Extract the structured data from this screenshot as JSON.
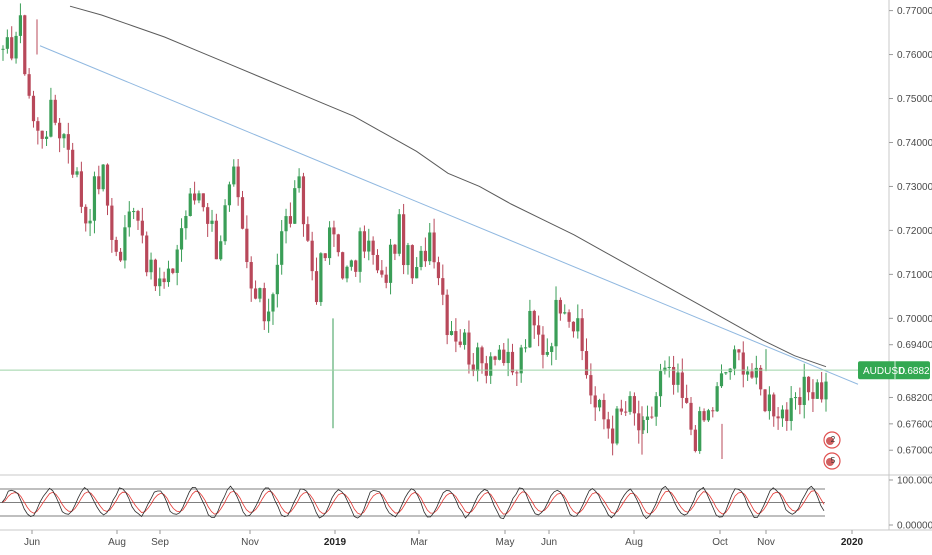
{
  "symbol": "AUDUSD",
  "last_price_label": "0.68821",
  "colors": {
    "up": "#26a69a",
    "down": "#ef5350",
    "up_body": "#3a9e57",
    "down_body": "#b8485a",
    "ma": "#5a5a5a",
    "trendline": "#90b8e0",
    "price_line": "#9ed3a6",
    "tag_bg": "#33a852",
    "osc_k": "#2b2b2b",
    "osc_d": "#e53935"
  },
  "icons": {
    "event_badge_1": "event-flag-icon",
    "event_badge_2": "event-flag-icon"
  },
  "event_badges": [
    "2",
    "5"
  ],
  "chart_data": {
    "type": "candlestick",
    "price_axis": {
      "ticks": [
        "0.77000",
        "0.76000",
        "0.75000",
        "0.74000",
        "0.73000",
        "0.72000",
        "0.71000",
        "0.70000",
        "0.69400",
        "0.68200",
        "0.67600",
        "0.67000"
      ],
      "tick_values": [
        0.77,
        0.76,
        0.75,
        0.74,
        0.73,
        0.72,
        0.71,
        0.7,
        0.694,
        0.682,
        0.676,
        0.67
      ],
      "ylim": [
        0.6655,
        0.7715
      ]
    },
    "time_axis": {
      "labels": [
        "Jun",
        "Aug",
        "Sep",
        "Nov",
        "2019",
        "Mar",
        "May",
        "Jun",
        "Aug",
        "Oct",
        "Nov",
        "2020"
      ],
      "bold": [
        "2019",
        "2020"
      ]
    },
    "price_path": [
      [
        0.756,
        0.76
      ],
      [
        0.766,
        0.768
      ],
      [
        0.739,
        0.743
      ],
      [
        0.745,
        0.748
      ],
      [
        0.738,
        0.742
      ],
      [
        0.72,
        0.726
      ],
      [
        0.732,
        0.736
      ],
      [
        0.71,
        0.714
      ],
      [
        0.73,
        0.728
      ],
      [
        0.708,
        0.71
      ],
      [
        0.708,
        0.706
      ],
      [
        0.722,
        0.725
      ],
      [
        0.729,
        0.731
      ],
      [
        0.715,
        0.718
      ],
      [
        0.729,
        0.734
      ],
      [
        0.705,
        0.708
      ],
      [
        0.7,
        0.701
      ],
      [
        0.718,
        0.722
      ],
      [
        0.727,
        0.73
      ],
      [
        0.706,
        0.708
      ],
      [
        0.718,
        0.722
      ],
      [
        0.71,
        0.707
      ],
      [
        0.718,
        0.72
      ],
      [
        0.706,
        0.708
      ],
      [
        0.72,
        0.721
      ],
      [
        0.708,
        0.707
      ],
      [
        0.72,
        0.722
      ],
      [
        0.699,
        0.701
      ],
      [
        0.696,
        0.694
      ],
      [
        0.688,
        0.689
      ],
      [
        0.694,
        0.696
      ],
      [
        0.686,
        0.685
      ],
      [
        0.698,
        0.699
      ],
      [
        0.692,
        0.694
      ],
      [
        0.706,
        0.708
      ],
      [
        0.696,
        0.694
      ],
      [
        0.68,
        0.679
      ],
      [
        0.676,
        0.674
      ],
      [
        0.679,
        0.681
      ],
      [
        0.672,
        0.673
      ],
      [
        0.687,
        0.688
      ],
      [
        0.683,
        0.685
      ],
      [
        0.674,
        0.673
      ],
      [
        0.678,
        0.68
      ],
      [
        0.688,
        0.69
      ],
      [
        0.691,
        0.692
      ],
      [
        0.682,
        0.684
      ],
      [
        0.68,
        0.681
      ],
      [
        0.678,
        0.677
      ],
      [
        0.684,
        0.686
      ],
      [
        0.681,
        0.687
      ]
    ],
    "highs_lows": {
      "top_high": 0.768,
      "spike_low": 0.675,
      "aug_low": 0.669,
      "oct_low": 0.668,
      "nov_high": 0.693
    },
    "moving_average": [
      0.771,
      0.769,
      0.7665,
      0.764,
      0.761,
      0.758,
      0.755,
      0.752,
      0.749,
      0.746,
      0.742,
      0.738,
      0.733,
      0.73,
      0.726,
      0.7225,
      0.719,
      0.715,
      0.711,
      0.707,
      0.703,
      0.699,
      0.695,
      0.6915,
      0.689
    ],
    "trendline": {
      "start": 0.762,
      "end": 0.685
    },
    "current_price": 0.68821,
    "oscillator": {
      "axis_ticks": [
        "100.00000",
        "0.00000"
      ],
      "tick_values": [
        100,
        0
      ],
      "levels": [
        80,
        50,
        20
      ]
    }
  }
}
